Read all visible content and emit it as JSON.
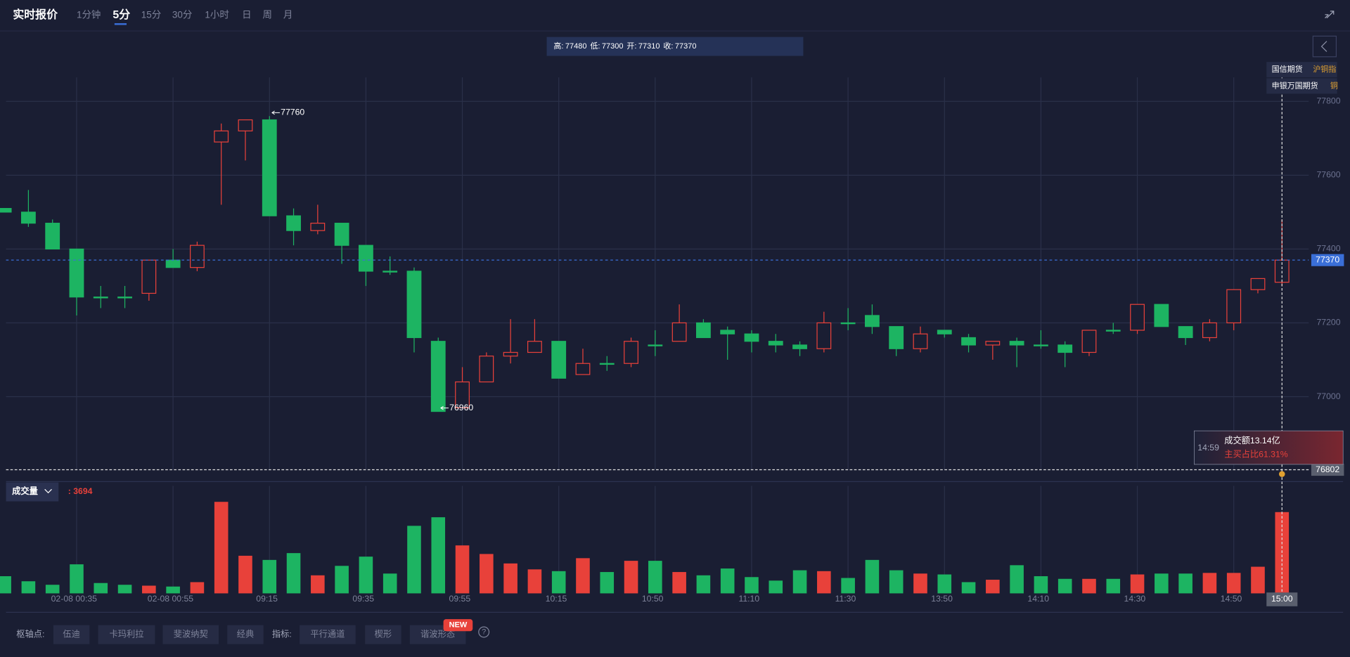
{
  "ui": {
    "header": "实时报价",
    "tabs": [
      "1分钟",
      "5分",
      "15分",
      "30分",
      "1小时",
      "日",
      "周",
      "月"
    ],
    "active_tab": 1,
    "info_labels": [
      "高:",
      "低:",
      "开:",
      "收:"
    ],
    "brokers": [
      {
        "name": "国信期货",
        "symbol": "沪铜指"
      },
      {
        "name": "申银万国期货",
        "symbol": "铜"
      }
    ],
    "tooltip": {
      "time": "14:59",
      "amount": "成交额13.14亿",
      "ratio": "主买占比61.31%"
    },
    "pivot_label": "枢轴点:",
    "pivot_buttons": [
      "伍迪",
      "卡玛利拉",
      "斐波纳契",
      "经典"
    ],
    "indicator_label": "指标:",
    "indicator_buttons": [
      "平行通道",
      "楔形",
      "谐波形态"
    ],
    "new_badge": "NEW",
    "help": "?"
  },
  "chart_data": [
    {
      "type": "candlestick",
      "open": [
        77510,
        77500,
        77470,
        77400,
        77270,
        77270,
        77280,
        77370,
        77350,
        77690,
        77720,
        77750,
        77490,
        77450,
        77470,
        77410,
        77340,
        77340,
        77150,
        76970,
        77040,
        77110,
        77120,
        77150,
        77060,
        77090,
        77090,
        77140,
        77150,
        77200,
        77180,
        77170,
        77150,
        77140,
        77130,
        77200,
        77220,
        77190,
        77130,
        77180,
        77160,
        77140,
        77150,
        77140,
        77140,
        77120,
        77180,
        77180,
        77250,
        77190,
        77160,
        77200,
        77290,
        77310
      ],
      "high": [
        77510,
        77560,
        77480,
        77400,
        77300,
        77300,
        77370,
        77400,
        77420,
        77740,
        77750,
        77760,
        77510,
        77520,
        77470,
        77410,
        77380,
        77350,
        77160,
        77080,
        77120,
        77210,
        77210,
        77150,
        77130,
        77110,
        77160,
        77180,
        77250,
        77210,
        77190,
        77180,
        77170,
        77150,
        77230,
        77240,
        77250,
        77190,
        77190,
        77180,
        77170,
        77150,
        77160,
        77180,
        77150,
        77180,
        77200,
        77250,
        77250,
        77190,
        77210,
        77290,
        77320,
        77480
      ],
      "low": [
        77500,
        77460,
        77400,
        77220,
        77240,
        77240,
        77260,
        77350,
        77340,
        77520,
        77640,
        77490,
        77410,
        77440,
        77360,
        77300,
        77330,
        77120,
        76960,
        76970,
        77040,
        77090,
        77120,
        77050,
        77060,
        77070,
        77080,
        77110,
        77150,
        77160,
        77100,
        77120,
        77120,
        77110,
        77120,
        77180,
        77170,
        77110,
        77120,
        77160,
        77120,
        77100,
        77080,
        77130,
        77080,
        77110,
        77170,
        77170,
        77190,
        77140,
        77150,
        77180,
        77280,
        77300
      ],
      "close": [
        77500,
        77470,
        77400,
        77270,
        77270,
        77270,
        77370,
        77350,
        77410,
        77720,
        77750,
        77490,
        77450,
        77470,
        77410,
        77340,
        77340,
        77160,
        76960,
        77040,
        77110,
        77120,
        77150,
        77050,
        77090,
        77090,
        77150,
        77140,
        77200,
        77160,
        77170,
        77150,
        77140,
        77130,
        77200,
        77200,
        77190,
        77130,
        77170,
        77170,
        77140,
        77150,
        77140,
        77140,
        77120,
        77180,
        77180,
        77250,
        77190,
        77160,
        77200,
        77290,
        77320,
        77370
      ],
      "up_color": "#e8413a",
      "down_color": "#1db462",
      "ylim": [
        76770,
        77865
      ],
      "yticks": [
        77000,
        77200,
        77400,
        77600,
        77800
      ],
      "grid": true,
      "crosshair_price": 76802
    },
    {
      "type": "bar",
      "title": "成交量",
      "value_prefix": ": ",
      "categories": [
        null,
        null,
        null,
        "02-08 00:35",
        null,
        null,
        null,
        "02-08 00:55",
        null,
        null,
        null,
        "09:15",
        null,
        null,
        null,
        "09:35",
        null,
        null,
        null,
        "09:55",
        null,
        null,
        null,
        "10:15",
        null,
        null,
        null,
        "10:50",
        null,
        null,
        null,
        "11:10",
        null,
        null,
        null,
        "11:30",
        null,
        null,
        null,
        "13:50",
        null,
        null,
        null,
        "14:10",
        null,
        null,
        null,
        "14:30",
        null,
        null,
        null,
        "14:50",
        null,
        "15:00"
      ],
      "values": [
        780,
        550,
        390,
        1320,
        470,
        390,
        350,
        310,
        510,
        4160,
        1710,
        1520,
        1830,
        820,
        1250,
        1670,
        900,
        3070,
        3460,
        2180,
        1790,
        1360,
        1090,
        1010,
        1600,
        970,
        1480,
        1480,
        970,
        820,
        1130,
        740,
        580,
        1050,
        1010,
        700,
        1520,
        1050,
        900,
        860,
        510,
        620,
        1280,
        780,
        660,
        660,
        660,
        860,
        900,
        900,
        930,
        930,
        1210,
        3694
      ],
      "ylim": [
        0,
        4300
      ]
    }
  ]
}
